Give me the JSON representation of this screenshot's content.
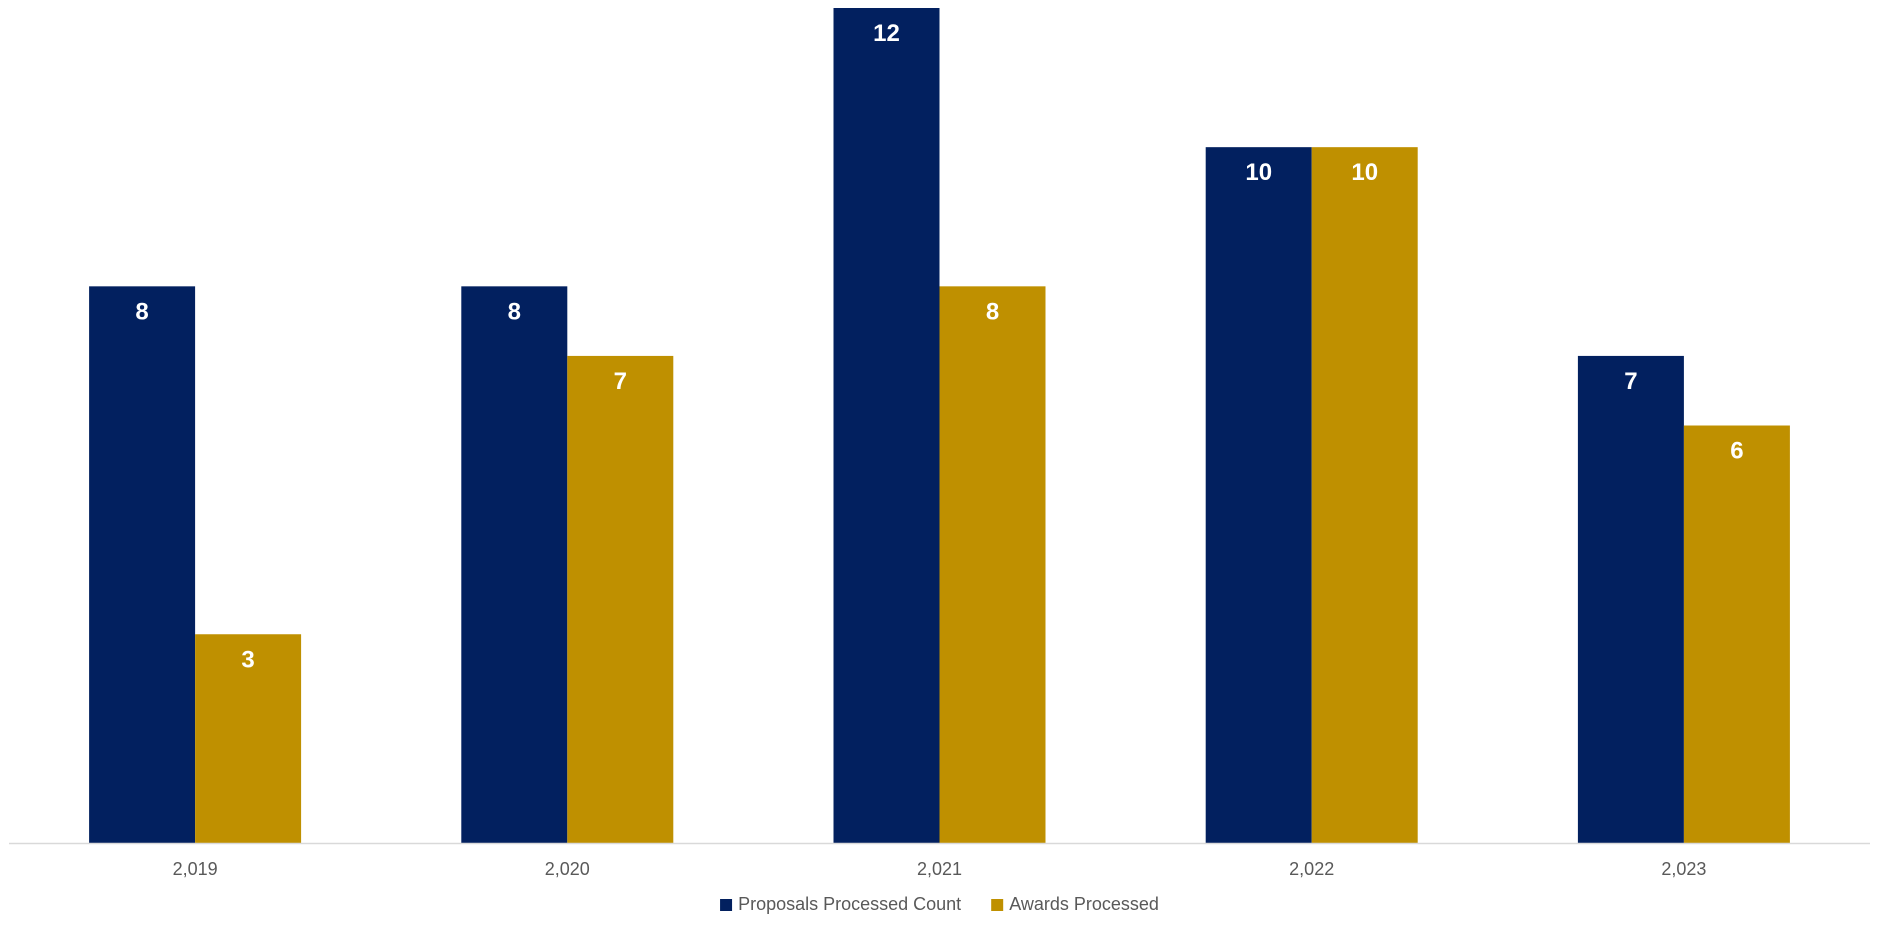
{
  "chart_data": {
    "type": "bar",
    "categories": [
      "2,019",
      "2,020",
      "2,021",
      "2,022",
      "2,023"
    ],
    "series": [
      {
        "name": "Proposals Processed Count",
        "values": [
          8,
          8,
          12,
          10,
          7
        ],
        "color": "#02205F"
      },
      {
        "name": "Awards Processed",
        "values": [
          3,
          7,
          8,
          10,
          6
        ],
        "color": "#BF9000"
      }
    ],
    "title": "",
    "xlabel": "",
    "ylabel": "",
    "ylim": [
      0,
      12
    ],
    "grid": false,
    "legend_position": "bottom",
    "data_labels": true,
    "axis_line_color": "#D9D9D9"
  }
}
